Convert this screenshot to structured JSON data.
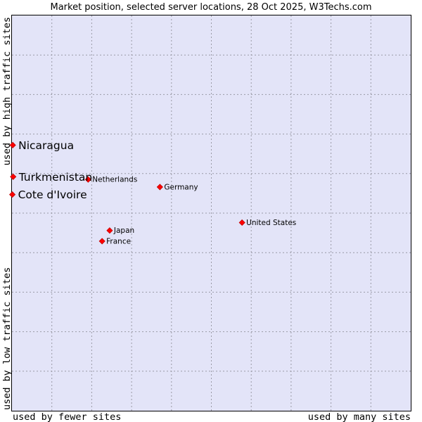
{
  "chart_data": {
    "type": "scatter",
    "title": "Market position, selected server locations, 28 Oct 2025, W3Techs.com",
    "xlabel_left": "used by fewer sites",
    "xlabel_right": "used by many sites",
    "ylabel_bottom": "used by low traffic sites",
    "ylabel_top": "used by high traffic sites",
    "xlim": [
      0,
      100
    ],
    "ylim": [
      0,
      100
    ],
    "grid": true,
    "colors": {
      "plot_bg": "#e3e4f8",
      "marker": "#ff0000",
      "marker_edge": "#c00000",
      "frame": "#000000"
    },
    "points": [
      {
        "name": "Nicaragua",
        "x": 0.2,
        "y": 67.2,
        "highlight": true
      },
      {
        "name": "Turkmenistan",
        "x": 0.3,
        "y": 59.2,
        "highlight": true
      },
      {
        "name": "Cote d'Ivoire",
        "x": 0.1,
        "y": 54.7,
        "highlight": true
      },
      {
        "name": "Netherlands",
        "x": 19.1,
        "y": 58.5,
        "highlight": false
      },
      {
        "name": "Germany",
        "x": 37.1,
        "y": 56.6,
        "highlight": false
      },
      {
        "name": "United States",
        "x": 57.7,
        "y": 47.6,
        "highlight": false
      },
      {
        "name": "Japan",
        "x": 24.5,
        "y": 45.6,
        "highlight": false
      },
      {
        "name": "France",
        "x": 22.6,
        "y": 42.9,
        "highlight": false
      }
    ]
  }
}
